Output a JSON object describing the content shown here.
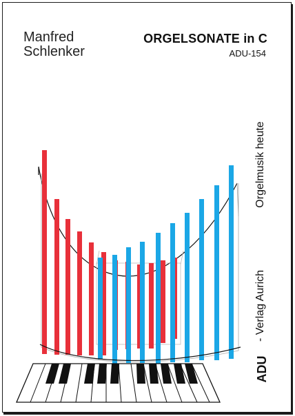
{
  "cover": {
    "author_first": "Manfred",
    "author_last": "Schlenker",
    "title": "ORGELSONATE in C",
    "catalog_number": "ADU-154",
    "series": "Orgelmusik heute",
    "publisher": "Verlag Aurich",
    "logo_text": "ADU",
    "colors": {
      "red": "#e8303a",
      "blue": "#1ba7e6",
      "ink": "#111111"
    }
  }
}
